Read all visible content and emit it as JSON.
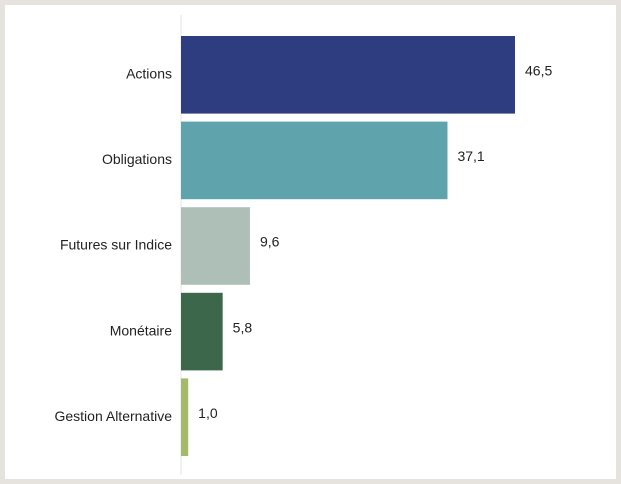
{
  "chart_data": {
    "type": "bar",
    "orientation": "horizontal",
    "categories": [
      "Actions",
      "Obligations",
      "Futures sur Indice",
      "Monétaire",
      "Gestion Alternative"
    ],
    "values": [
      46.5,
      37.1,
      9.6,
      5.8,
      1.0
    ],
    "value_labels": [
      "46,5",
      "37,1",
      "9,6",
      "5,8",
      "1,0"
    ],
    "colors": [
      "#2e3d80",
      "#5fa3ad",
      "#adbfb6",
      "#3d674a",
      "#a5b96a"
    ]
  }
}
